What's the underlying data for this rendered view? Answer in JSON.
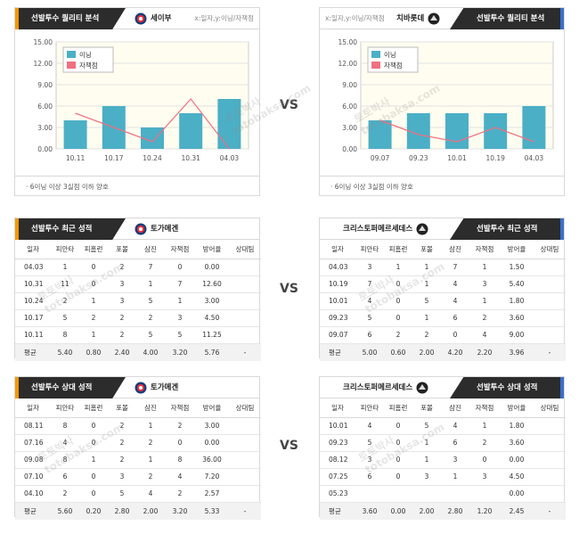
{
  "vs_label": "VS",
  "watermark": [
    "토토박사",
    "totobaksa.com"
  ],
  "sections": {
    "quality": {
      "title": "선발투수 퀄리티 분석",
      "hint": "x:일자,y:이닝/자책점",
      "footnote": "6이닝 이상 3실점 이하 양호",
      "left_team": "세이부",
      "right_team": "치바롯데"
    },
    "recent": {
      "title": "선발투수 최근 성적",
      "left_pitcher": "토가메겐",
      "right_pitcher": "크리스토퍼메르세데스"
    },
    "vs_opp": {
      "title": "선발투수 상대 성적",
      "left_pitcher": "토가메겐",
      "right_pitcher": "크리스토퍼메르세데스"
    }
  },
  "table_headers": [
    "일자",
    "피안타",
    "피홈런",
    "포볼",
    "삼진",
    "자책점",
    "방어율",
    "상대팀"
  ],
  "tables": {
    "recent_left": {
      "rows": [
        [
          "04.03",
          "1",
          "0",
          "2",
          "7",
          "0",
          "0.00",
          ""
        ],
        [
          "10.31",
          "11",
          "0",
          "3",
          "1",
          "7",
          "12.60",
          ""
        ],
        [
          "10.24",
          "2",
          "1",
          "3",
          "5",
          "1",
          "3.00",
          ""
        ],
        [
          "10.17",
          "5",
          "2",
          "2",
          "2",
          "3",
          "4.50",
          ""
        ],
        [
          "10.11",
          "8",
          "1",
          "2",
          "5",
          "5",
          "11.25",
          ""
        ]
      ],
      "avg": [
        "평균",
        "5.40",
        "0.80",
        "2.40",
        "4.00",
        "3.20",
        "5.76",
        "-"
      ]
    },
    "recent_right": {
      "rows": [
        [
          "04.03",
          "3",
          "1",
          "1",
          "7",
          "1",
          "1.50",
          ""
        ],
        [
          "10.19",
          "7",
          "0",
          "1",
          "4",
          "3",
          "5.40",
          ""
        ],
        [
          "10.01",
          "4",
          "0",
          "5",
          "4",
          "1",
          "1.80",
          ""
        ],
        [
          "09.23",
          "5",
          "0",
          "1",
          "6",
          "2",
          "3.60",
          ""
        ],
        [
          "09.07",
          "6",
          "2",
          "2",
          "0",
          "4",
          "9.00",
          ""
        ]
      ],
      "avg": [
        "평균",
        "5.00",
        "0.60",
        "2.00",
        "4.20",
        "2.20",
        "3.96",
        "-"
      ]
    },
    "vs_left": {
      "rows": [
        [
          "08.11",
          "8",
          "0",
          "2",
          "1",
          "2",
          "3.00",
          ""
        ],
        [
          "07.16",
          "4",
          "0",
          "2",
          "2",
          "0",
          "0.00",
          ""
        ],
        [
          "09.08",
          "8",
          "1",
          "2",
          "1",
          "8",
          "36.00",
          ""
        ],
        [
          "07.10",
          "6",
          "0",
          "3",
          "2",
          "4",
          "7.20",
          ""
        ],
        [
          "04.10",
          "2",
          "0",
          "5",
          "4",
          "2",
          "2.57",
          ""
        ]
      ],
      "avg": [
        "평균",
        "5.60",
        "0.20",
        "2.80",
        "2.00",
        "3.20",
        "5.33",
        "-"
      ]
    },
    "vs_right": {
      "rows": [
        [
          "10.01",
          "4",
          "0",
          "5",
          "4",
          "1",
          "1.80",
          ""
        ],
        [
          "09.23",
          "5",
          "0",
          "1",
          "6",
          "2",
          "3.60",
          ""
        ],
        [
          "08.12",
          "3",
          "0",
          "1",
          "3",
          "0",
          "0.00",
          ""
        ],
        [
          "07.25",
          "6",
          "0",
          "3",
          "1",
          "3",
          "4.50",
          ""
        ],
        [
          "05.23",
          "",
          "",
          "",
          "",
          "",
          "0.00",
          ""
        ]
      ],
      "avg": [
        "평균",
        "3.60",
        "0.00",
        "2.00",
        "2.80",
        "1.20",
        "2.45",
        "-"
      ]
    }
  },
  "chart_data": [
    {
      "type": "bar",
      "categories": [
        "10.11",
        "10.17",
        "10.24",
        "10.31",
        "04.03"
      ],
      "series": [
        {
          "name": "이닝",
          "type": "bar",
          "color": "#4bafc6",
          "values": [
            4,
            6,
            3,
            5,
            7
          ]
        },
        {
          "name": "자책점",
          "type": "line",
          "color": "#f07080",
          "values": [
            5,
            3,
            1,
            7,
            0
          ]
        }
      ],
      "ylim": [
        0,
        15
      ],
      "yticks": [
        "0.00",
        "3.00",
        "6.00",
        "9.00",
        "12.00",
        "15.00"
      ],
      "grid": true,
      "legend": "top-left"
    },
    {
      "type": "bar",
      "categories": [
        "09.07",
        "09.23",
        "10.01",
        "10.19",
        "04.03"
      ],
      "series": [
        {
          "name": "이닝",
          "type": "bar",
          "color": "#4bafc6",
          "values": [
            4,
            5,
            5,
            5,
            6
          ]
        },
        {
          "name": "자책점",
          "type": "line",
          "color": "#f07080",
          "values": [
            4,
            2,
            1,
            3,
            1
          ]
        }
      ],
      "ylim": [
        0,
        15
      ],
      "yticks": [
        "0.00",
        "3.00",
        "6.00",
        "9.00",
        "12.00",
        "15.00"
      ],
      "grid": true,
      "legend": "top-left"
    }
  ]
}
